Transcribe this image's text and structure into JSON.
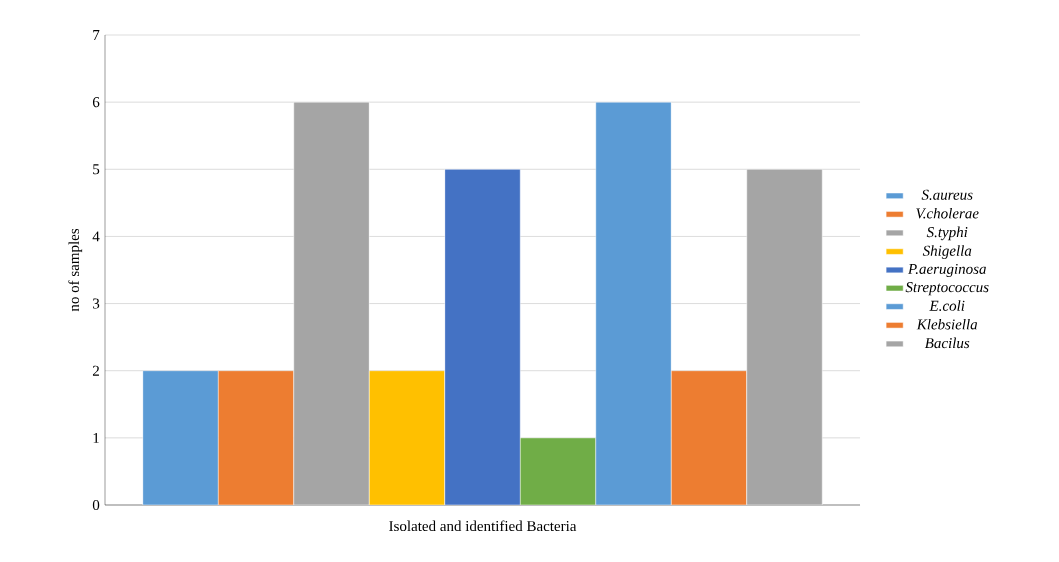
{
  "chart_data": {
    "type": "bar",
    "xlabel": "Isolated and identified Bacteria",
    "ylabel": "no of samples",
    "categories": [
      null
    ],
    "series": [
      {
        "name": "S.aureus",
        "color": "#5b9bd5",
        "values": [
          2
        ]
      },
      {
        "name": "V.cholerae",
        "color": "#ed7d31",
        "values": [
          2
        ]
      },
      {
        "name": "S.typhi",
        "color": "#a5a5a5",
        "values": [
          6
        ]
      },
      {
        "name": "Shigella",
        "color": "#ffc000",
        "values": [
          2
        ]
      },
      {
        "name": "P.aeruginosa",
        "color": "#4472c4",
        "values": [
          5
        ]
      },
      {
        "name": "Streptococcus",
        "color": "#70ad47",
        "values": [
          1
        ]
      },
      {
        "name": "E.coli",
        "color": "#5b9bd5",
        "values": [
          6
        ]
      },
      {
        "name": "Klebsiella",
        "color": "#ed7d31",
        "values": [
          2
        ]
      },
      {
        "name": "Bacilus",
        "color": "#a5a5a5",
        "values": [
          5
        ]
      }
    ],
    "ylim": [
      0,
      7
    ],
    "yticks": [
      0,
      1,
      2,
      3,
      4,
      5,
      6,
      7
    ],
    "grid": "y",
    "legend": "right"
  }
}
